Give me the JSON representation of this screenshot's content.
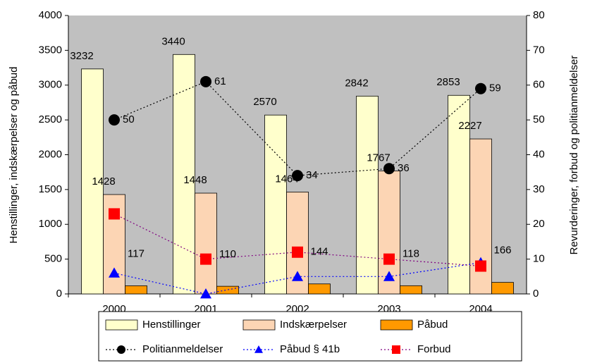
{
  "chart_data": {
    "type": "bar",
    "categories": [
      "2000",
      "2001",
      "2002",
      "2003",
      "2004"
    ],
    "ylabel": "Henstillinger, indskærpelser og påbud",
    "y2label": "Revurderinger, forbud og politianmeldelser",
    "ylim": [
      0,
      4000
    ],
    "yticks": [
      0,
      500,
      1000,
      1500,
      2000,
      2500,
      3000,
      3500,
      4000
    ],
    "y2lim": [
      0,
      80
    ],
    "y2ticks": [
      0,
      10,
      20,
      30,
      40,
      50,
      60,
      70,
      80
    ],
    "background": "#c0c0c0",
    "series": [
      {
        "name": "Henstillinger",
        "type": "bar",
        "color": "#ffffcc",
        "values": [
          3232,
          3440,
          2570,
          2842,
          2853
        ],
        "data_labels": true
      },
      {
        "name": "Indskærpelser",
        "type": "bar",
        "color": "#fcd5b4",
        "values": [
          1428,
          1448,
          1464,
          1767,
          2227
        ],
        "data_labels": true
      },
      {
        "name": "Påbud",
        "type": "bar",
        "color": "#ff9900",
        "values": [
          117,
          110,
          144,
          118,
          166
        ],
        "data_labels": true
      },
      {
        "name": "Politianmeldelser",
        "type": "line",
        "axis": "y2",
        "color": "#000000",
        "marker": "circle",
        "values": [
          50,
          61,
          34,
          36,
          59
        ],
        "data_labels": true
      },
      {
        "name": "Påbud § 41b",
        "type": "line",
        "axis": "y2",
        "color": "#0000ff",
        "marker": "triangle",
        "values": [
          6,
          0,
          5,
          5,
          9
        ],
        "data_labels": false
      },
      {
        "name": "Forbud",
        "type": "line",
        "axis": "y2",
        "color": "#ff0000",
        "line_color": "#800080",
        "marker": "square",
        "values": [
          23,
          10,
          12,
          10,
          8
        ],
        "data_labels": false
      }
    ]
  }
}
